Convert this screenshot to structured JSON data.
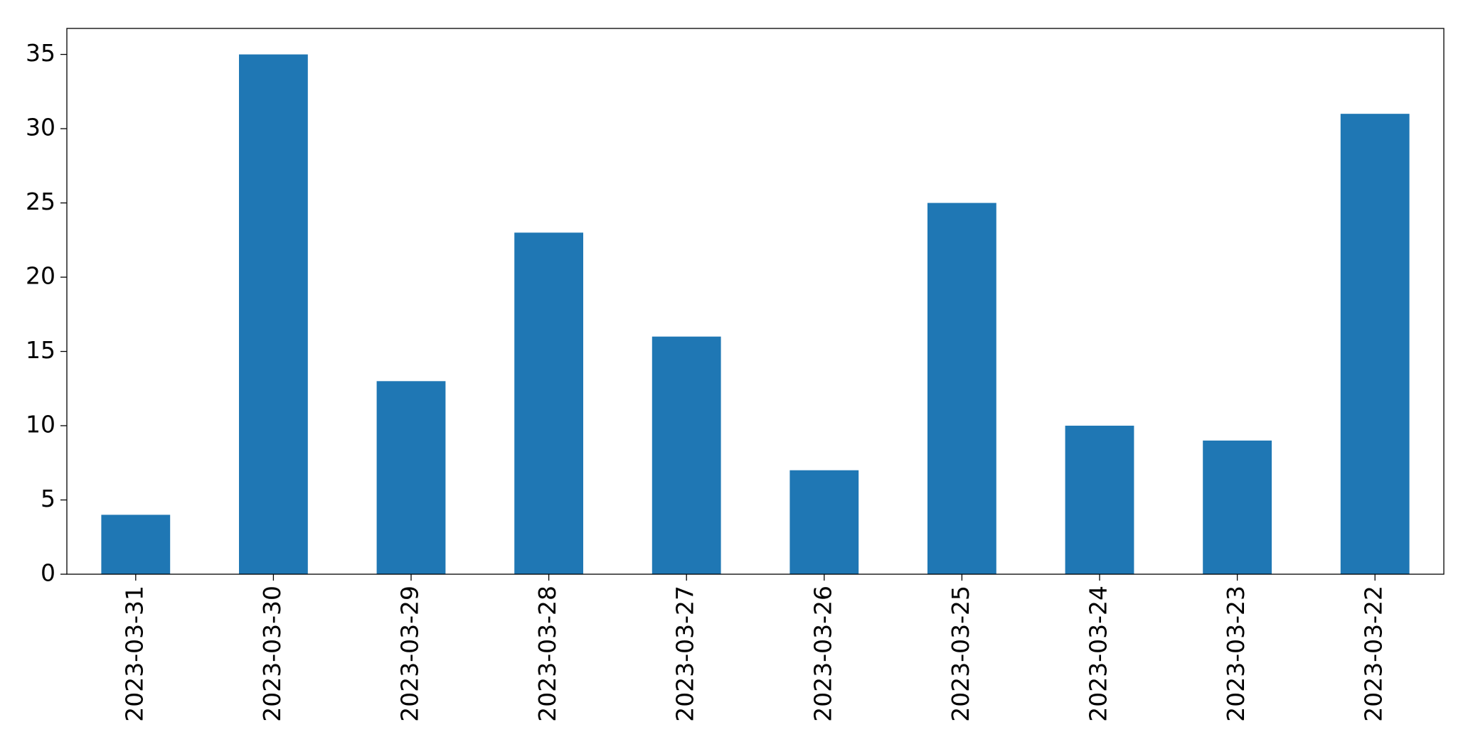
{
  "chart_data": {
    "type": "bar",
    "categories": [
      "2023-03-31",
      "2023-03-30",
      "2023-03-29",
      "2023-03-28",
      "2023-03-27",
      "2023-03-26",
      "2023-03-25",
      "2023-03-24",
      "2023-03-23",
      "2023-03-22"
    ],
    "values": [
      4,
      35,
      13,
      23,
      16,
      7,
      25,
      10,
      9,
      31
    ],
    "color": "#1f77b4",
    "ylim": [
      0,
      36.75
    ],
    "yticks": [
      0,
      5,
      10,
      15,
      20,
      25,
      30,
      35
    ],
    "grid": false
  }
}
